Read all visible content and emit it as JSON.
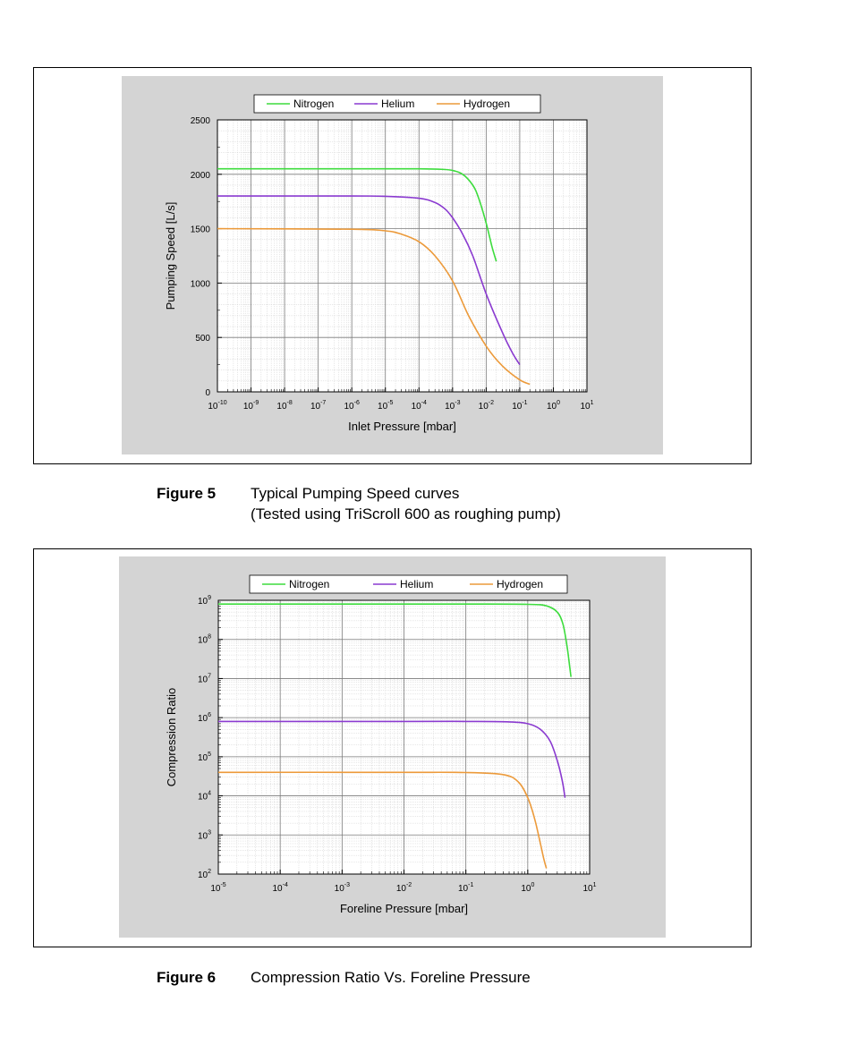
{
  "figures": [
    {
      "label": "Figure 5",
      "caption_lines": [
        "Typical Pumping Speed curves",
        "(Tested using TriScroll 600 as roughing pump)"
      ]
    },
    {
      "label": "Figure 6",
      "caption_lines": [
        "Compression Ratio Vs. Foreline Pressure"
      ]
    }
  ],
  "chart_data": [
    {
      "type": "line",
      "xlabel": "Inlet Pressure [mbar]",
      "ylabel": "Pumping Speed [L/s]",
      "xscale": "log",
      "yscale": "linear",
      "xlim": [
        1e-10,
        10
      ],
      "ylim": [
        0,
        2500
      ],
      "xticks": [
        1e-10,
        1e-09,
        1e-08,
        1e-07,
        1e-06,
        1e-05,
        0.0001,
        0.001,
        0.01,
        0.1,
        1,
        10
      ],
      "yticks": [
        0,
        500,
        1000,
        1500,
        2000,
        2500
      ],
      "grid": true,
      "legend_position": "top",
      "series": [
        {
          "name": "Nitrogen",
          "color": "#3ddc3d",
          "x": [
            1e-10,
            1e-06,
            0.0001,
            0.0005,
            0.001,
            0.002,
            0.004,
            0.006,
            0.01,
            0.015,
            0.02
          ],
          "y": [
            2050,
            2050,
            2050,
            2045,
            2035,
            2000,
            1900,
            1780,
            1550,
            1330,
            1200
          ]
        },
        {
          "name": "Helium",
          "color": "#8a3ad0",
          "x": [
            1e-10,
            1e-06,
            1e-05,
            0.0001,
            0.0003,
            0.0006,
            0.001,
            0.002,
            0.004,
            0.01,
            0.03,
            0.06,
            0.1
          ],
          "y": [
            1800,
            1800,
            1798,
            1780,
            1740,
            1680,
            1600,
            1450,
            1250,
            900,
            550,
            360,
            250
          ]
        },
        {
          "name": "Hydrogen",
          "color": "#ec9a3a",
          "x": [
            1e-10,
            1e-06,
            1e-05,
            3e-05,
            0.0001,
            0.0003,
            0.001,
            0.003,
            0.01,
            0.03,
            0.1,
            0.2
          ],
          "y": [
            1500,
            1495,
            1480,
            1450,
            1380,
            1250,
            1020,
            700,
            420,
            240,
            110,
            70
          ]
        }
      ]
    },
    {
      "type": "line",
      "xlabel": "Foreline Pressure [mbar]",
      "ylabel": "Compression Ratio",
      "xscale": "log",
      "yscale": "log",
      "xlim": [
        1e-05,
        10
      ],
      "ylim": [
        100,
        1000000000.0
      ],
      "xticks": [
        1e-05,
        0.0001,
        0.001,
        0.01,
        0.1,
        1,
        10
      ],
      "yticks": [
        100,
        1000,
        10000.0,
        100000.0,
        1000000.0,
        10000000.0,
        100000000.0,
        1000000000.0
      ],
      "grid": true,
      "legend_position": "top",
      "series": [
        {
          "name": "Nitrogen",
          "color": "#3ddc3d",
          "x": [
            1e-05,
            0.01,
            0.1,
            1,
            2,
            3,
            3.7,
            4.3,
            4.8,
            5
          ],
          "y": [
            800000000.0,
            800000000.0,
            800000000.0,
            790000000.0,
            720000000.0,
            500000000.0,
            250000000.0,
            70000000.0,
            18000000.0,
            11000000.0
          ]
        },
        {
          "name": "Helium",
          "color": "#8a3ad0",
          "x": [
            1e-05,
            0.01,
            0.1,
            0.5,
            1,
            1.6,
            2.3,
            3,
            3.6,
            4
          ],
          "y": [
            800000.0,
            800000.0,
            800000.0,
            780000.0,
            700000.0,
            500000.0,
            250000.0,
            80000.0,
            25000.0,
            9000.0
          ]
        },
        {
          "name": "Hydrogen",
          "color": "#ec9a3a",
          "x": [
            1e-05,
            0.01,
            0.1,
            0.4,
            0.7,
            1,
            1.3,
            1.6,
            1.8,
            2
          ],
          "y": [
            40000.0,
            40000.0,
            39500.0,
            35000.0,
            23000.0,
            9000.0,
            2500.0,
            600,
            260,
            140
          ]
        }
      ]
    }
  ]
}
